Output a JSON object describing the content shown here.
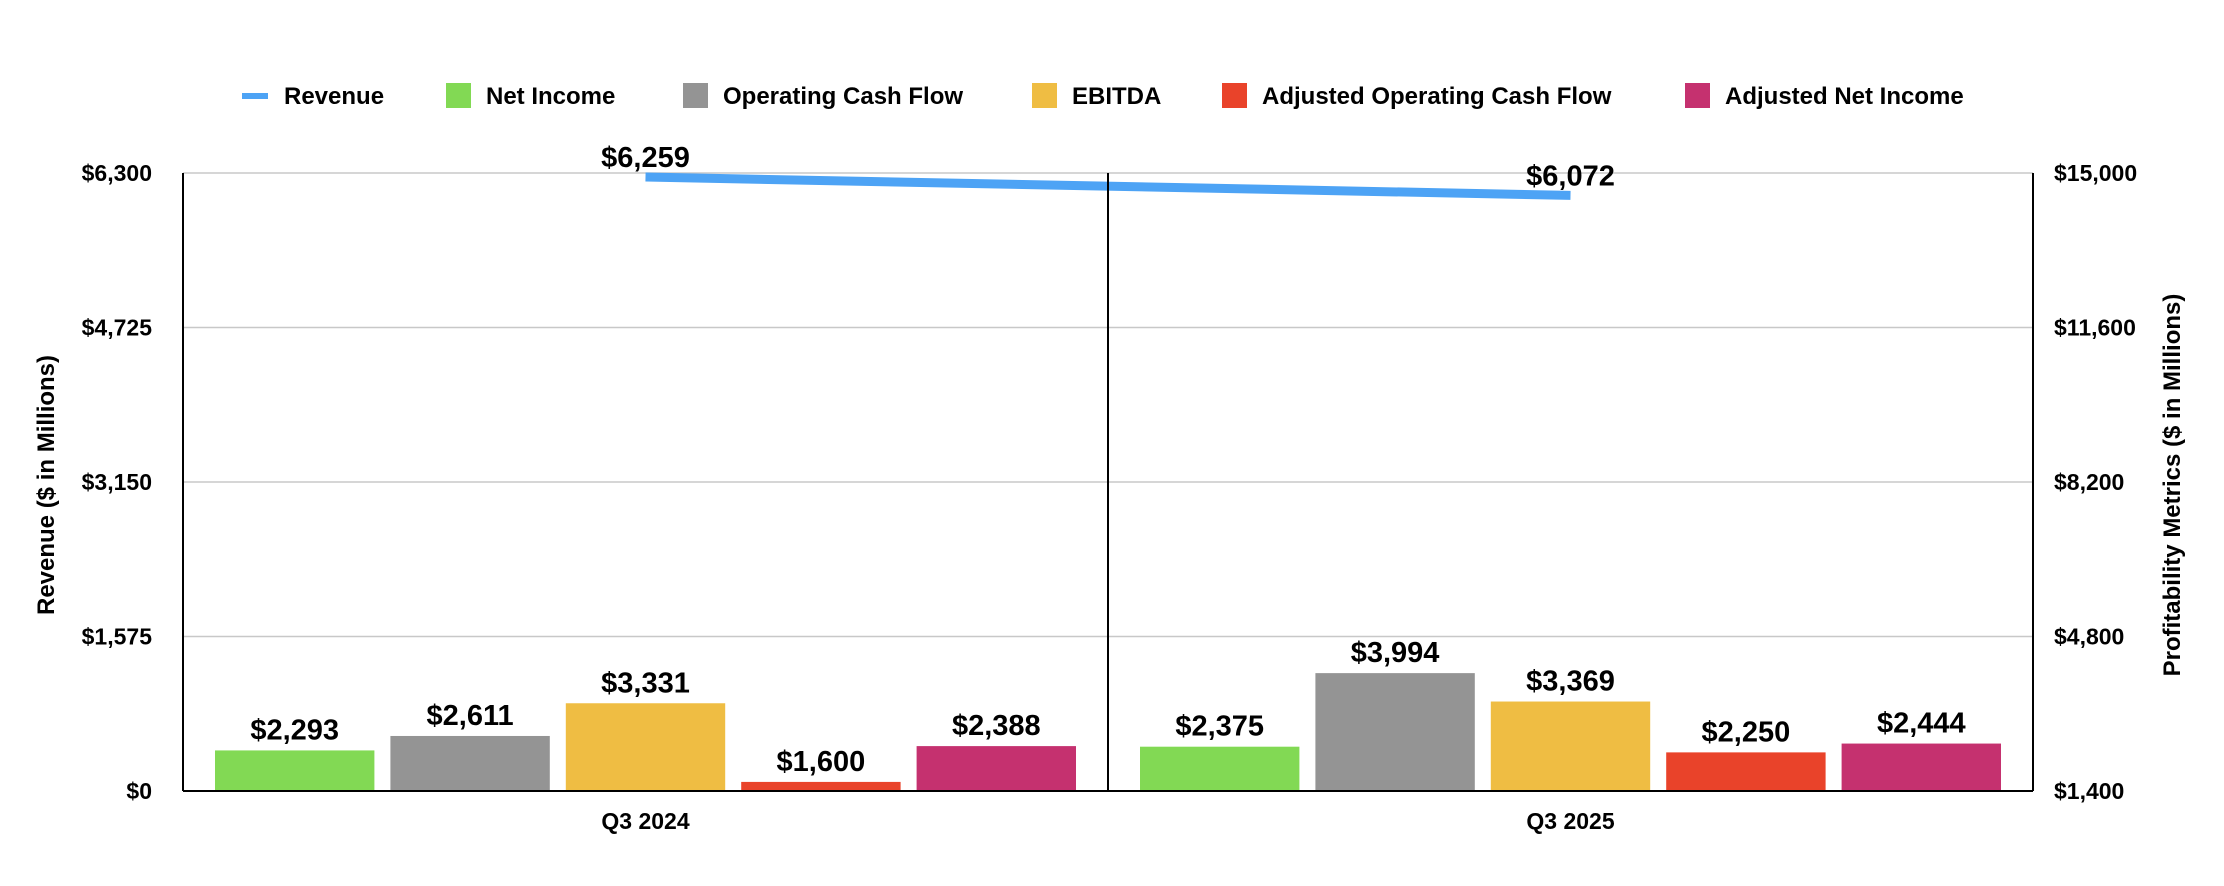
{
  "chart_data": {
    "type": "bar",
    "categories": [
      "Q3 2024",
      "Q3 2025"
    ],
    "line_series": {
      "name": "Revenue",
      "axis": "left",
      "color": "#4da3f5",
      "values": [
        6259,
        6072
      ],
      "labels": [
        "$6,259",
        "$6,072"
      ]
    },
    "series": [
      {
        "name": "Net Income",
        "axis": "right",
        "color": "#82d954",
        "values": [
          2293,
          2375
        ],
        "labels": [
          "$2,293",
          "$2,375"
        ]
      },
      {
        "name": "Operating Cash Flow",
        "axis": "right",
        "color": "#949494",
        "values": [
          2611,
          3994
        ],
        "labels": [
          "$2,611",
          "$3,994"
        ]
      },
      {
        "name": "EBITDA",
        "axis": "right",
        "color": "#efbd43",
        "values": [
          3331,
          3369
        ],
        "labels": [
          "$3,331",
          "$3,369"
        ]
      },
      {
        "name": "Adjusted Operating Cash Flow",
        "axis": "right",
        "color": "#e9432a",
        "values": [
          1600,
          2250
        ],
        "labels": [
          "$1,600",
          "$2,250"
        ]
      },
      {
        "name": "Adjusted Net Income",
        "axis": "right",
        "color": "#c5316f",
        "values": [
          2388,
          2444
        ],
        "labels": [
          "$2,388",
          "$2,444"
        ]
      }
    ],
    "ylabel": "Revenue ($ in Millions)",
    "y2label": "Profitability Metrics ($ in Millions)",
    "ylim": [
      0,
      6300
    ],
    "y2lim": [
      1400,
      15000
    ],
    "yticks": [
      0,
      1575,
      3150,
      4725,
      6300
    ],
    "ytick_labels": [
      "$0",
      "$1,575",
      "$3,150",
      "$4,725",
      "$6,300"
    ],
    "y2ticks": [
      1400,
      4800,
      8200,
      11600,
      15000
    ],
    "y2tick_labels": [
      "$1,400",
      "$4,800",
      "$8,200",
      "$11,600",
      "$15,000"
    ],
    "grid": true,
    "legend_position": "top"
  }
}
